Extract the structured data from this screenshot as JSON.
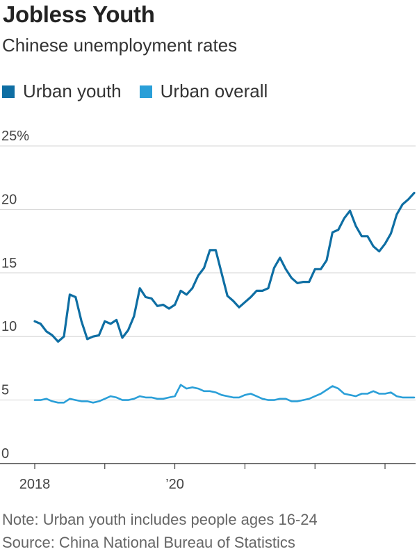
{
  "title": "Jobless Youth",
  "subtitle": "Chinese unemployment rates",
  "note": "Note: Urban youth includes people ages 16-24",
  "source": "Source: China National Bureau of Statistics",
  "chart_data": {
    "type": "line",
    "y_ticks": [
      {
        "value": 25,
        "label": "25%"
      },
      {
        "value": 20,
        "label": "20"
      },
      {
        "value": 15,
        "label": "15"
      },
      {
        "value": 10,
        "label": "10"
      },
      {
        "value": 5,
        "label": "5"
      },
      {
        "value": 0,
        "label": "0"
      }
    ],
    "x_ticks": [
      {
        "date": "2018-01",
        "label": "2018"
      },
      {
        "date": "2019-01",
        "label": ""
      },
      {
        "date": "2020-01",
        "label": "’20"
      },
      {
        "date": "2021-01",
        "label": ""
      },
      {
        "date": "2022-01",
        "label": ""
      },
      {
        "date": "2023-01",
        "label": ""
      }
    ],
    "ylim": [
      0,
      25
    ],
    "xlim": [
      "2018-01",
      "2023-05"
    ],
    "grid": true,
    "legend_position": "top-left",
    "series": [
      {
        "name": "Urban youth",
        "color": "#0e6ea3",
        "values": [
          [
            "2018-01",
            11.2
          ],
          [
            "2018-02",
            11.0
          ],
          [
            "2018-03",
            10.4
          ],
          [
            "2018-04",
            10.1
          ],
          [
            "2018-05",
            9.6
          ],
          [
            "2018-06",
            10.0
          ],
          [
            "2018-07",
            13.3
          ],
          [
            "2018-08",
            13.1
          ],
          [
            "2018-09",
            11.2
          ],
          [
            "2018-10",
            9.8
          ],
          [
            "2018-11",
            10.0
          ],
          [
            "2018-12",
            10.1
          ],
          [
            "2019-01",
            11.2
          ],
          [
            "2019-02",
            11.0
          ],
          [
            "2019-03",
            11.3
          ],
          [
            "2019-04",
            9.9
          ],
          [
            "2019-05",
            10.5
          ],
          [
            "2019-06",
            11.6
          ],
          [
            "2019-07",
            13.8
          ],
          [
            "2019-08",
            13.1
          ],
          [
            "2019-09",
            13.0
          ],
          [
            "2019-10",
            12.4
          ],
          [
            "2019-11",
            12.5
          ],
          [
            "2019-12",
            12.2
          ],
          [
            "2020-01",
            12.5
          ],
          [
            "2020-02",
            13.6
          ],
          [
            "2020-03",
            13.3
          ],
          [
            "2020-04",
            13.8
          ],
          [
            "2020-05",
            14.8
          ],
          [
            "2020-06",
            15.4
          ],
          [
            "2020-07",
            16.8
          ],
          [
            "2020-08",
            16.8
          ],
          [
            "2020-09",
            15.0
          ],
          [
            "2020-10",
            13.2
          ],
          [
            "2020-11",
            12.8
          ],
          [
            "2020-12",
            12.3
          ],
          [
            "2021-01",
            12.7
          ],
          [
            "2021-02",
            13.1
          ],
          [
            "2021-03",
            13.6
          ],
          [
            "2021-04",
            13.6
          ],
          [
            "2021-05",
            13.8
          ],
          [
            "2021-06",
            15.4
          ],
          [
            "2021-07",
            16.2
          ],
          [
            "2021-08",
            15.3
          ],
          [
            "2021-09",
            14.6
          ],
          [
            "2021-10",
            14.2
          ],
          [
            "2021-11",
            14.3
          ],
          [
            "2021-12",
            14.3
          ],
          [
            "2022-01",
            15.3
          ],
          [
            "2022-02",
            15.3
          ],
          [
            "2022-03",
            16.0
          ],
          [
            "2022-04",
            18.2
          ],
          [
            "2022-05",
            18.4
          ],
          [
            "2022-06",
            19.3
          ],
          [
            "2022-07",
            19.9
          ],
          [
            "2022-08",
            18.7
          ],
          [
            "2022-09",
            17.9
          ],
          [
            "2022-10",
            17.9
          ],
          [
            "2022-11",
            17.1
          ],
          [
            "2022-12",
            16.7
          ],
          [
            "2023-01",
            17.3
          ],
          [
            "2023-02",
            18.1
          ],
          [
            "2023-03",
            19.6
          ],
          [
            "2023-04",
            20.4
          ],
          [
            "2023-05",
            20.8
          ],
          [
            "2023-06",
            21.3
          ]
        ]
      },
      {
        "name": "Urban overall",
        "color": "#2a9fd8",
        "values": [
          [
            "2018-01",
            5.0
          ],
          [
            "2018-02",
            5.0
          ],
          [
            "2018-03",
            5.1
          ],
          [
            "2018-04",
            4.9
          ],
          [
            "2018-05",
            4.8
          ],
          [
            "2018-06",
            4.8
          ],
          [
            "2018-07",
            5.1
          ],
          [
            "2018-08",
            5.0
          ],
          [
            "2018-09",
            4.9
          ],
          [
            "2018-10",
            4.9
          ],
          [
            "2018-11",
            4.8
          ],
          [
            "2018-12",
            4.9
          ],
          [
            "2019-01",
            5.1
          ],
          [
            "2019-02",
            5.3
          ],
          [
            "2019-03",
            5.2
          ],
          [
            "2019-04",
            5.0
          ],
          [
            "2019-05",
            5.0
          ],
          [
            "2019-06",
            5.1
          ],
          [
            "2019-07",
            5.3
          ],
          [
            "2019-08",
            5.2
          ],
          [
            "2019-09",
            5.2
          ],
          [
            "2019-10",
            5.1
          ],
          [
            "2019-11",
            5.1
          ],
          [
            "2019-12",
            5.2
          ],
          [
            "2020-01",
            5.3
          ],
          [
            "2020-02",
            6.2
          ],
          [
            "2020-03",
            5.9
          ],
          [
            "2020-04",
            6.0
          ],
          [
            "2020-05",
            5.9
          ],
          [
            "2020-06",
            5.7
          ],
          [
            "2020-07",
            5.7
          ],
          [
            "2020-08",
            5.6
          ],
          [
            "2020-09",
            5.4
          ],
          [
            "2020-10",
            5.3
          ],
          [
            "2020-11",
            5.2
          ],
          [
            "2020-12",
            5.2
          ],
          [
            "2021-01",
            5.4
          ],
          [
            "2021-02",
            5.5
          ],
          [
            "2021-03",
            5.3
          ],
          [
            "2021-04",
            5.1
          ],
          [
            "2021-05",
            5.0
          ],
          [
            "2021-06",
            5.0
          ],
          [
            "2021-07",
            5.1
          ],
          [
            "2021-08",
            5.1
          ],
          [
            "2021-09",
            4.9
          ],
          [
            "2021-10",
            4.9
          ],
          [
            "2021-11",
            5.0
          ],
          [
            "2021-12",
            5.1
          ],
          [
            "2022-01",
            5.3
          ],
          [
            "2022-02",
            5.5
          ],
          [
            "2022-03",
            5.8
          ],
          [
            "2022-04",
            6.1
          ],
          [
            "2022-05",
            5.9
          ],
          [
            "2022-06",
            5.5
          ],
          [
            "2022-07",
            5.4
          ],
          [
            "2022-08",
            5.3
          ],
          [
            "2022-09",
            5.5
          ],
          [
            "2022-10",
            5.5
          ],
          [
            "2022-11",
            5.7
          ],
          [
            "2022-12",
            5.5
          ],
          [
            "2023-01",
            5.5
          ],
          [
            "2023-02",
            5.6
          ],
          [
            "2023-03",
            5.3
          ],
          [
            "2023-04",
            5.2
          ],
          [
            "2023-05",
            5.2
          ],
          [
            "2023-06",
            5.2
          ]
        ]
      }
    ]
  }
}
